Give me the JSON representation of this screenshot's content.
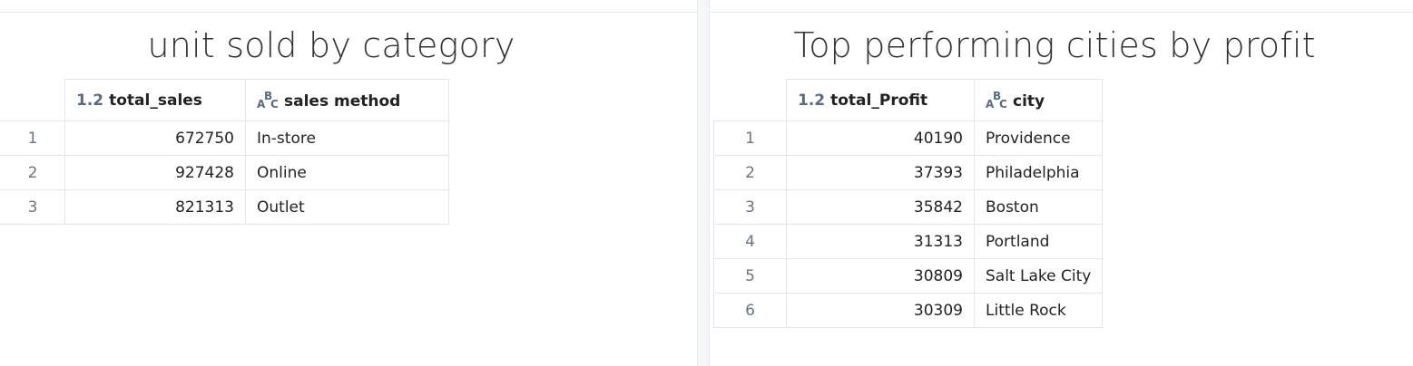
{
  "left_panel": {
    "title": "unit sold by category",
    "columns": {
      "index": "",
      "col1": {
        "type": "1.2",
        "name": "total_sales"
      },
      "col2": {
        "type": "ABC",
        "name": "sales method"
      }
    },
    "rows": [
      {
        "index": "1",
        "value": "672750",
        "label": "In-store"
      },
      {
        "index": "2",
        "value": "927428",
        "label": "Online"
      },
      {
        "index": "3",
        "value": "821313",
        "label": "Outlet"
      }
    ]
  },
  "right_panel": {
    "title": "Top performing cities by profit",
    "columns": {
      "index": "",
      "col1": {
        "type": "1.2",
        "name": "total_Profit"
      },
      "col2": {
        "type": "ABC",
        "name": "city"
      }
    },
    "rows": [
      {
        "index": "1",
        "value": "40190",
        "label": "Providence"
      },
      {
        "index": "2",
        "value": "37393",
        "label": "Philadelphia"
      },
      {
        "index": "3",
        "value": "35842",
        "label": "Boston"
      },
      {
        "index": "4",
        "value": "31313",
        "label": "Portland"
      },
      {
        "index": "5",
        "value": "30809",
        "label": "Salt Lake City"
      },
      {
        "index": "6",
        "value": "30309",
        "label": "Little Rock"
      }
    ]
  }
}
